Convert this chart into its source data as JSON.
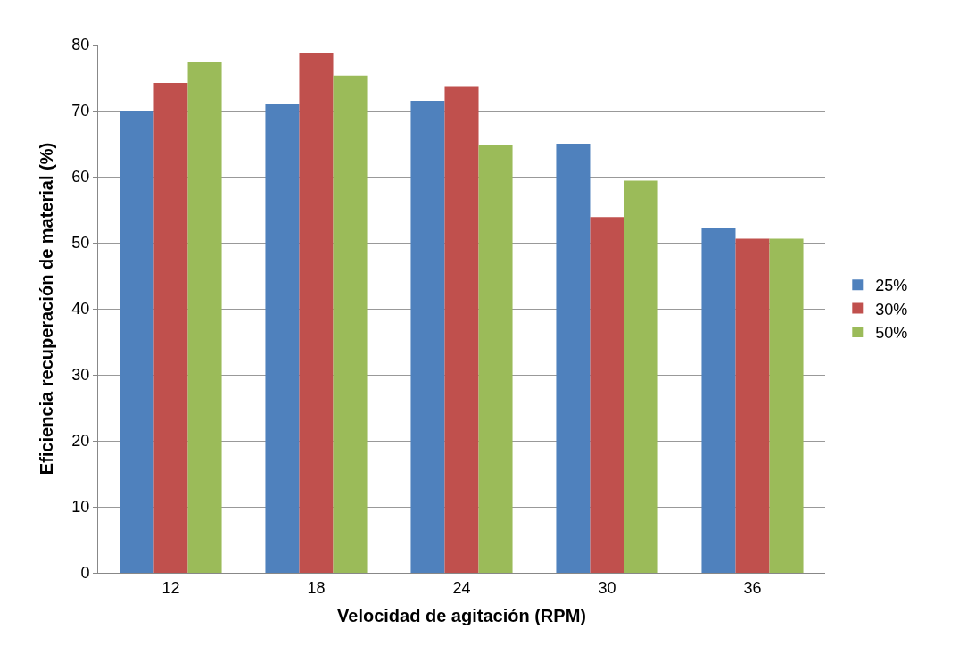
{
  "chart_data": {
    "type": "bar",
    "xlabel": "Velocidad de agitación (RPM)",
    "ylabel": "Eficiencia recuperación de material (%)",
    "categories": [
      "12",
      "18",
      "24",
      "30",
      "36"
    ],
    "series": [
      {
        "name": "25%",
        "color": "#4f81bd",
        "values": [
          70.0,
          71.0,
          71.5,
          65.0,
          52.2
        ]
      },
      {
        "name": "30%",
        "color": "#c0504d",
        "values": [
          74.2,
          78.8,
          73.7,
          53.9,
          50.6
        ]
      },
      {
        "name": "50%",
        "color": "#9bbb59",
        "values": [
          77.4,
          75.3,
          64.8,
          59.4,
          50.6
        ]
      }
    ],
    "ylim": [
      0,
      80
    ],
    "yticks": [
      0,
      10,
      20,
      30,
      40,
      50,
      60,
      70,
      80
    ],
    "grid": "y",
    "legend": "right"
  }
}
